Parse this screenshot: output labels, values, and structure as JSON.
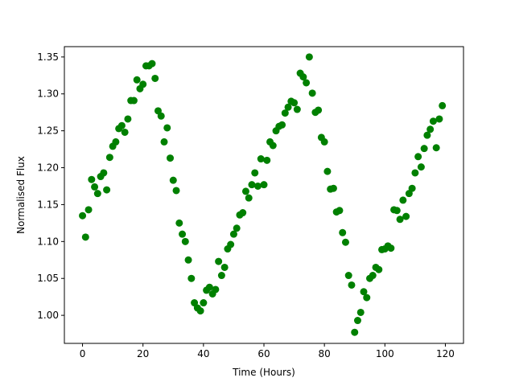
{
  "chart_data": {
    "type": "scatter",
    "title": "",
    "xlabel": "Time (Hours)",
    "ylabel": "Normalised Flux",
    "xlim": [
      -6,
      126
    ],
    "ylim": [
      0.962,
      1.364
    ],
    "xticks": [
      0,
      20,
      40,
      60,
      80,
      100,
      120
    ],
    "xtick_labels": [
      "0",
      "20",
      "40",
      "60",
      "80",
      "100",
      "120"
    ],
    "yticks": [
      1.0,
      1.05,
      1.1,
      1.15,
      1.2,
      1.25,
      1.3,
      1.35
    ],
    "ytick_labels": [
      "1.00",
      "1.05",
      "1.10",
      "1.15",
      "1.20",
      "1.25",
      "1.30",
      "1.35"
    ],
    "grid": false,
    "marker_color": "#008000",
    "series": [
      {
        "x": [
          0,
          1,
          2,
          3,
          4,
          5,
          6,
          7,
          8,
          9,
          10,
          11,
          12,
          13,
          14,
          15,
          16,
          17,
          18,
          19,
          20,
          21,
          22,
          23,
          24,
          25,
          26,
          27,
          28,
          29,
          30,
          31,
          32,
          33,
          34,
          35,
          36,
          37,
          38,
          39,
          40,
          41,
          42,
          43,
          44,
          45,
          46,
          47,
          48,
          49,
          50,
          51,
          52,
          53,
          54,
          55,
          56,
          57,
          58,
          59,
          60,
          61,
          62,
          63,
          64,
          65,
          66,
          67,
          68,
          69,
          70,
          71,
          72,
          73,
          74,
          75,
          76,
          77,
          78,
          79,
          80,
          81,
          82,
          83,
          84,
          85,
          86,
          87,
          88,
          89,
          90,
          91,
          92,
          93,
          94,
          95,
          96,
          97,
          98,
          99,
          100,
          101,
          102,
          103,
          104,
          105,
          106,
          107,
          108,
          109,
          110,
          111,
          112,
          113,
          114,
          115,
          116,
          117,
          118,
          119
        ],
        "y": [
          1.135,
          1.106,
          1.143,
          1.184,
          1.174,
          1.165,
          1.188,
          1.193,
          1.17,
          1.214,
          1.229,
          1.235,
          1.253,
          1.257,
          1.248,
          1.266,
          1.291,
          1.291,
          1.319,
          1.307,
          1.313,
          1.338,
          1.338,
          1.341,
          1.321,
          1.277,
          1.27,
          1.235,
          1.254,
          1.213,
          1.183,
          1.169,
          1.125,
          1.11,
          1.1,
          1.075,
          1.05,
          1.017,
          1.01,
          1.006,
          1.017,
          1.034,
          1.038,
          1.029,
          1.035,
          1.073,
          1.054,
          1.065,
          1.09,
          1.096,
          1.11,
          1.118,
          1.136,
          1.139,
          1.168,
          1.159,
          1.177,
          1.193,
          1.175,
          1.212,
          1.177,
          1.21,
          1.235,
          1.23,
          1.25,
          1.256,
          1.258,
          1.274,
          1.282,
          1.29,
          1.288,
          1.279,
          1.328,
          1.323,
          1.315,
          1.35,
          1.301,
          1.275,
          1.278,
          1.241,
          1.235,
          1.195,
          1.171,
          1.172,
          1.14,
          1.142,
          1.112,
          1.099,
          1.054,
          1.041,
          0.977,
          0.993,
          1.004,
          1.032,
          1.024,
          1.05,
          1.054,
          1.065,
          1.062,
          1.089,
          1.09,
          1.094,
          1.091,
          1.143,
          1.142,
          1.13,
          1.156,
          1.134,
          1.165,
          1.172,
          1.193,
          1.215,
          1.201,
          1.226,
          1.244,
          1.252,
          1.263,
          1.227,
          1.266,
          1.284
        ]
      }
    ]
  }
}
